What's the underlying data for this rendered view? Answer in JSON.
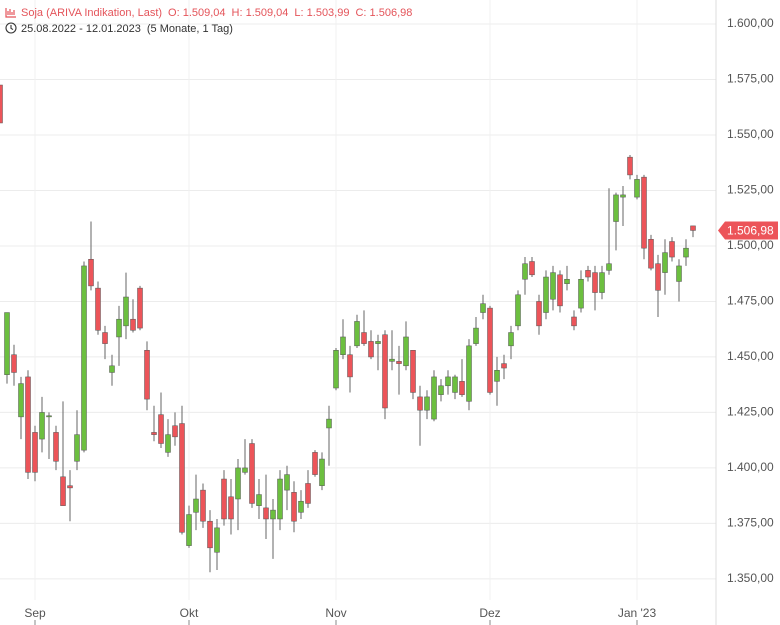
{
  "chart_data": {
    "type": "candlestick",
    "title": "Soja (ARIVA Indikation, Last)",
    "header_values": [
      "O: 1.509,04",
      "H: 1.509,04",
      "L: 1.503,99",
      "C: 1.506,98"
    ],
    "date_range": "25.08.2022 - 12.01.2023",
    "period": "(5 Monate, 1 Tag)",
    "last_label": {
      "value": 1506.98,
      "label": "1.506,98"
    },
    "up_color": "#6cbf3f",
    "down_color": "#ec5459",
    "grid": true,
    "ylim": [
      1340.5,
      1610.8
    ],
    "yticks": [
      {
        "value": 1350,
        "label": "1.350,00"
      },
      {
        "value": 1375,
        "label": "1.375,00"
      },
      {
        "value": 1400,
        "label": "1.400,00"
      },
      {
        "value": 1425,
        "label": "1.425,00"
      },
      {
        "value": 1450,
        "label": "1.450,00"
      },
      {
        "value": 1475,
        "label": "1.475,00"
      },
      {
        "value": 1500,
        "label": "1.500,00"
      },
      {
        "value": 1525,
        "label": "1.525,00"
      },
      {
        "value": 1550,
        "label": "1.550,00"
      },
      {
        "value": 1575,
        "label": "1.575,00"
      },
      {
        "value": 1600,
        "label": "1.600,00"
      }
    ],
    "categories": [
      null,
      null,
      null,
      null,
      null,
      "Sep",
      null,
      null,
      null,
      null,
      null,
      null,
      null,
      null,
      null,
      null,
      null,
      null,
      null,
      null,
      null,
      null,
      null,
      null,
      null,
      null,
      null,
      "Okt",
      null,
      null,
      null,
      null,
      null,
      null,
      null,
      null,
      null,
      null,
      null,
      null,
      null,
      null,
      null,
      null,
      null,
      null,
      null,
      null,
      "Nov",
      null,
      null,
      null,
      null,
      null,
      null,
      null,
      null,
      null,
      null,
      null,
      null,
      null,
      null,
      null,
      null,
      null,
      null,
      null,
      null,
      null,
      "Dez",
      null,
      null,
      null,
      null,
      null,
      null,
      null,
      null,
      null,
      null,
      null,
      null,
      null,
      null,
      null,
      null,
      null,
      null,
      null,
      null,
      "Jan '23",
      null,
      null,
      null,
      null,
      null,
      null,
      null,
      null
    ],
    "open": [
      1572.5,
      1442,
      1451,
      1423,
      1441,
      1416,
      1413,
      1423,
      1416,
      1396,
      1392,
      1403,
      1408,
      1494,
      1481,
      1461,
      1443,
      1459,
      1464,
      1467,
      1481,
      1453,
      1416,
      1424,
      1407,
      1419,
      1420,
      1365,
      1380,
      1390,
      1376,
      1362,
      1395,
      1387,
      1386,
      1398,
      1411,
      1383,
      1382,
      1377,
      1377,
      1390,
      1389,
      1380,
      1393,
      1407,
      1392,
      1418,
      1436,
      1451,
      1451,
      1455,
      1461,
      1457,
      1456,
      1460,
      1448,
      1448,
      1446,
      1453,
      1432,
      1426,
      1422,
      1433,
      1437,
      1434,
      1439,
      1430,
      1456,
      1470,
      1472,
      1439,
      1447,
      1455,
      1464,
      1485,
      1493,
      1475,
      1470,
      1476,
      1487,
      1483,
      1468,
      1472,
      1489,
      1488,
      1479,
      1489,
      1511,
      1522,
      1540,
      1522,
      1531,
      1503,
      1492,
      1488,
      1502,
      1484,
      1495,
      1509.04
    ],
    "high": [
      1572.5,
      1470,
      1455.5,
      1441,
      1444,
      1419,
      1432,
      1425,
      1419,
      1430,
      1399,
      1426,
      1493,
      1511,
      1484,
      1464,
      1451,
      1473,
      1488,
      1476,
      1482,
      1457,
      1428,
      1434,
      1422,
      1425,
      1428,
      1383,
      1397,
      1393,
      1381,
      1377,
      1399,
      1395,
      1404,
      1413,
      1413,
      1395,
      1397,
      1386,
      1399,
      1401,
      1394,
      1390,
      1399,
      1408,
      1407,
      1428,
      1454,
      1467,
      1455,
      1469,
      1471,
      1462,
      1460,
      1462,
      1462,
      1455,
      1466,
      1453,
      1437,
      1435,
      1444,
      1440,
      1444,
      1442,
      1449,
      1458,
      1468,
      1478,
      1473,
      1450,
      1451,
      1464,
      1480,
      1495,
      1495,
      1478,
      1489,
      1491,
      1489,
      1491,
      1471,
      1489,
      1491,
      1491,
      1491,
      1526,
      1524,
      1527,
      1541,
      1532,
      1532,
      1505,
      1496,
      1503,
      1504,
      1494,
      1503,
      1509.04
    ],
    "low": [
      1555.4,
      1438,
      1437,
      1413,
      1395,
      1394,
      1407,
      1404,
      1399,
      1383,
      1376,
      1399,
      1407,
      1480,
      1460,
      1449,
      1437,
      1446,
      1458,
      1461,
      1462,
      1426,
      1412,
      1409,
      1405,
      1410,
      1370,
      1364,
      1372,
      1373,
      1353,
      1354,
      1374,
      1370,
      1372,
      1397,
      1382,
      1377,
      1368,
      1359,
      1372,
      1381,
      1371,
      1377,
      1382,
      1396,
      1390,
      1401,
      1435,
      1449,
      1434,
      1454,
      1455,
      1449,
      1444,
      1422,
      1444,
      1433,
      1444,
      1431,
      1410,
      1422,
      1421,
      1430,
      1433,
      1431,
      1432,
      1426,
      1455,
      1467,
      1433,
      1428,
      1440,
      1449,
      1462,
      1478,
      1486,
      1460,
      1467,
      1471,
      1470,
      1480,
      1462,
      1470,
      1484,
      1471,
      1476,
      1487,
      1498,
      1509,
      1530,
      1521,
      1494,
      1489,
      1468,
      1478,
      1493,
      1475,
      1491,
      1503.99
    ],
    "close": [
      1555.4,
      1470,
      1443,
      1438,
      1398,
      1398,
      1425,
      1423.5,
      1403,
      1383,
      1391,
      1415,
      1491,
      1482,
      1462,
      1456,
      1446,
      1467,
      1477,
      1462,
      1463,
      1431,
      1415,
      1411,
      1415,
      1414,
      1371,
      1379,
      1386,
      1376,
      1364,
      1373,
      1377,
      1377,
      1400,
      1400,
      1384,
      1388,
      1377,
      1381,
      1395,
      1397,
      1376,
      1385,
      1384,
      1397,
      1404,
      1422,
      1453,
      1459,
      1441,
      1466,
      1456,
      1450,
      1457,
      1427,
      1449,
      1447,
      1459,
      1434,
      1426,
      1432,
      1441,
      1437,
      1441,
      1441,
      1433,
      1455,
      1463,
      1474,
      1434,
      1444,
      1445,
      1461,
      1478,
      1492,
      1487,
      1464,
      1486,
      1488,
      1473,
      1485,
      1464,
      1485,
      1486,
      1479,
      1488,
      1492,
      1523,
      1523,
      1532,
      1530,
      1499,
      1490,
      1480,
      1497,
      1495,
      1491,
      1499,
      1506.98
    ]
  }
}
